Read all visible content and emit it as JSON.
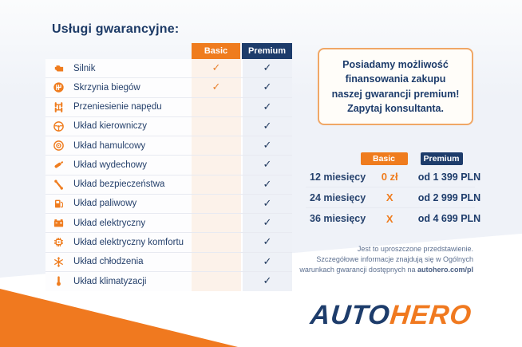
{
  "title": "Usługi gwarancyjne:",
  "columns": {
    "basic": "Basic",
    "premium": "Premium"
  },
  "check_mark": "✓",
  "services": [
    {
      "icon": "engine-icon",
      "label": "Silnik",
      "basic": true,
      "premium": true
    },
    {
      "icon": "gearbox-icon",
      "label": "Skrzynia biegów",
      "basic": true,
      "premium": true
    },
    {
      "icon": "drivetrain-icon",
      "label": "Przeniesienie napędu",
      "basic": false,
      "premium": true
    },
    {
      "icon": "steering-wheel-icon",
      "label": "Układ kierowniczy",
      "basic": false,
      "premium": true
    },
    {
      "icon": "brake-disc-icon",
      "label": "Układ hamulcowy",
      "basic": false,
      "premium": true
    },
    {
      "icon": "exhaust-icon",
      "label": "Układ wydechowy",
      "basic": false,
      "premium": true
    },
    {
      "icon": "seatbelt-icon",
      "label": "Układ bezpieczeństwa",
      "basic": false,
      "premium": true
    },
    {
      "icon": "fuel-pump-icon",
      "label": "Układ paliwowy",
      "basic": false,
      "premium": true
    },
    {
      "icon": "battery-icon",
      "label": "Układ elektryczny",
      "basic": false,
      "premium": true
    },
    {
      "icon": "chip-icon",
      "label": "Układ elektryczny komfortu",
      "basic": false,
      "premium": true
    },
    {
      "icon": "snowflake-icon",
      "label": "Układ chłodzenia",
      "basic": false,
      "premium": true
    },
    {
      "icon": "thermometer-icon",
      "label": "Układ klimatyzacji",
      "basic": false,
      "premium": true
    }
  ],
  "promo_box": {
    "lines": [
      "Posiadamy możliwość",
      "finansowania zakupu",
      "naszej gwarancji premium!",
      "Zapytaj konsultanta."
    ]
  },
  "pricing": {
    "columns": {
      "basic": "Basic",
      "premium": "Premium"
    },
    "rows": [
      {
        "period": "12 miesięcy",
        "basic": "0 zł",
        "premium": "od 1 399 PLN"
      },
      {
        "period": "24 miesięcy",
        "basic": "X",
        "premium": "od 2 999 PLN"
      },
      {
        "period": "36 miesięcy",
        "basic": "X",
        "premium": "od 4 699 PLN"
      }
    ]
  },
  "disclaimer": {
    "line1": "Jest to uproszczone przedstawienie.",
    "line2": "Szczegółowe informacje znajdują się w Ogólnych",
    "line3_prefix": "warunkach gwarancji dostępnych na ",
    "line3_bold": "autohero.com/pl"
  },
  "logo": {
    "auto": "AUTO",
    "hero": "HERO"
  },
  "colors": {
    "navy": "#1d3c6b",
    "orange": "#ef7c1e",
    "basic_tint": "#fcf2ea",
    "premium_tint": "#eef1f7"
  }
}
